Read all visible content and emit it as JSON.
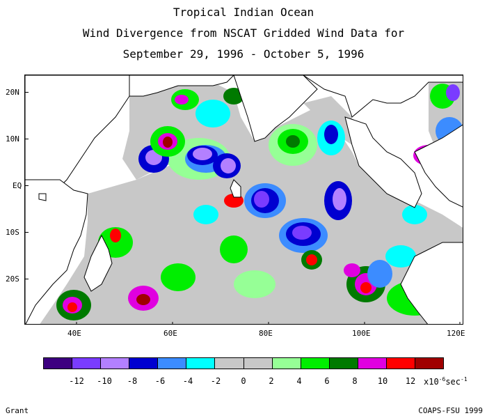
{
  "title": {
    "line1": "Tropical Indian Ocean",
    "line2": "Wind Divergence from NSCAT Gridded Wind Data for",
    "line3": "September 29, 1996 - October 5, 1996"
  },
  "map": {
    "lat_labels": [
      "20N",
      "10N",
      "EQ",
      "10S",
      "20S"
    ],
    "lon_labels": [
      "40E",
      "60E",
      "80E",
      "100E",
      "120E"
    ],
    "lon_range": [
      30,
      121
    ],
    "lat_range": [
      -30,
      24
    ]
  },
  "legend": {
    "colors": [
      "#3d0080",
      "#7a3cff",
      "#b380ff",
      "#0000d0",
      "#3c8cff",
      "#00ffff",
      "#c8c8c8",
      "#c8c8c8",
      "#96ff96",
      "#00ee00",
      "#007a00",
      "#e000e0",
      "#ff0000",
      "#a00000"
    ],
    "labels": [
      "-12",
      "-10",
      "-8",
      "-6",
      "-4",
      "-2",
      "0",
      "2",
      "4",
      "6",
      "8",
      "10",
      "12"
    ],
    "units_prefix": "x10",
    "units_exp": "-6",
    "units_suffix": "sec",
    "units_exp2": "-1"
  },
  "credits": {
    "left": "Grant",
    "right": "COAPS-FSU 1999"
  }
}
